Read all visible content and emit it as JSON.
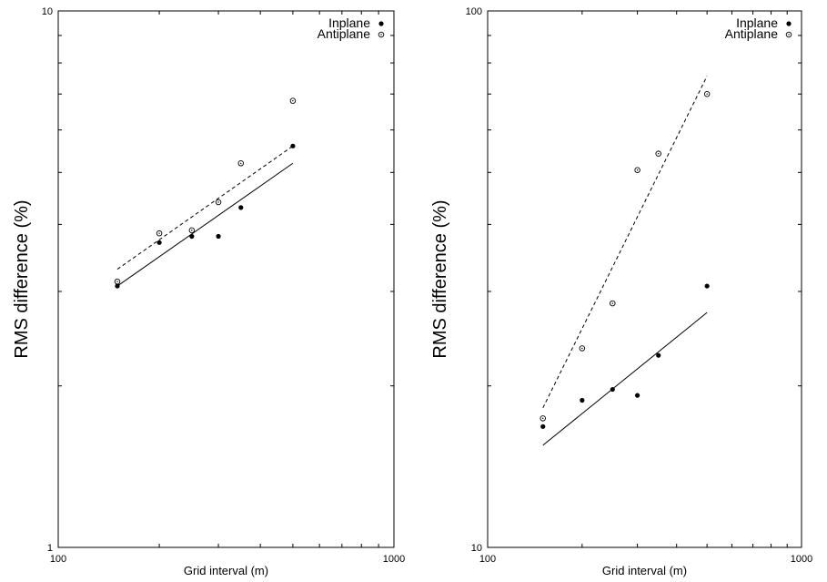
{
  "chart_data": [
    {
      "type": "scatter",
      "title": "",
      "xlabel": "Grid interval (m)",
      "ylabel": "RMS difference (%)",
      "xscale": "log",
      "yscale": "log",
      "xlim": [
        100,
        1000
      ],
      "ylim": [
        1,
        10
      ],
      "x_tick_labels": [
        "100",
        "1000"
      ],
      "y_tick_labels": [
        "1",
        "10"
      ],
      "legend_position": "top-right",
      "series": [
        {
          "name": "Inplane",
          "marker": "filled-circle",
          "x": [
            150,
            200,
            250,
            300,
            350,
            500
          ],
          "y": [
            3.07,
            3.7,
            3.8,
            3.8,
            4.3,
            5.6
          ]
        },
        {
          "name": "Antiplane",
          "marker": "open-circle",
          "x": [
            150,
            200,
            250,
            300,
            350,
            500
          ],
          "y": [
            3.13,
            3.85,
            3.9,
            4.4,
            5.2,
            6.8
          ]
        }
      ],
      "fit_lines": [
        {
          "series": "Inplane",
          "style": "solid",
          "x": [
            150,
            500
          ],
          "y": [
            3.07,
            5.2
          ]
        },
        {
          "series": "Antiplane",
          "style": "dashed",
          "x": [
            150,
            500
          ],
          "y": [
            3.3,
            5.6
          ]
        }
      ]
    },
    {
      "type": "scatter",
      "title": "",
      "xlabel": "Grid interval (m)",
      "ylabel": "RMS difference (%)",
      "xscale": "log",
      "yscale": "log",
      "xlim": [
        100,
        1000
      ],
      "ylim": [
        10,
        100
      ],
      "x_tick_labels": [
        "100",
        "1000"
      ],
      "y_tick_labels": [
        "10",
        "100"
      ],
      "legend_position": "top-right",
      "series": [
        {
          "name": "Inplane",
          "marker": "filled-circle",
          "x": [
            150,
            200,
            250,
            300,
            350,
            500
          ],
          "y": [
            16.8,
            18.8,
            19.7,
            19.2,
            22.8,
            30.7
          ]
        },
        {
          "name": "Antiplane",
          "marker": "open-circle",
          "x": [
            150,
            200,
            250,
            300,
            350,
            500
          ],
          "y": [
            17.4,
            23.5,
            28.5,
            50.5,
            54.2,
            70.0
          ]
        }
      ],
      "fit_lines": [
        {
          "series": "Inplane",
          "style": "solid",
          "x": [
            150,
            500
          ],
          "y": [
            15.5,
            27.4
          ]
        },
        {
          "series": "Antiplane",
          "style": "dashed",
          "x": [
            150,
            500
          ],
          "y": [
            18.2,
            75.6
          ]
        }
      ]
    }
  ]
}
